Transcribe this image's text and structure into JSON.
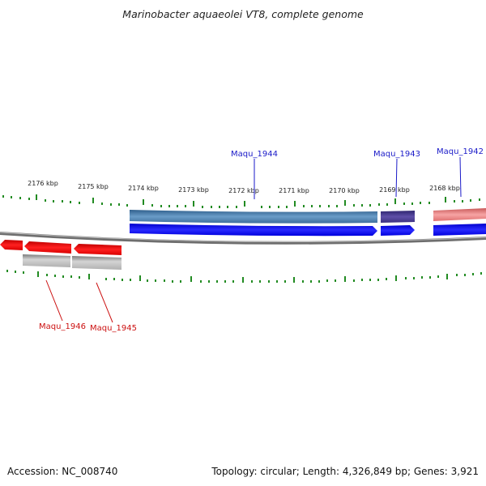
{
  "title": "Marinobacter aquaeolei VT8, complete genome",
  "footer": {
    "accession": "Accession: NC_008740",
    "summary": "Topology: circular; Length: 4,326,849 bp; Genes: 3,921"
  },
  "ticks": [
    "2176 kbp",
    "2175 kbp",
    "2174 kbp",
    "2173 kbp",
    "2172 kbp",
    "2171 kbp",
    "2170 kbp",
    "2169 kbp",
    "2168 kbp"
  ],
  "genes_forward": [
    "Maqu_1944",
    "Maqu_1943",
    "Maqu_1942"
  ],
  "genes_reverse": [
    "Maqu_1946",
    "Maqu_1945"
  ],
  "colors": {
    "forward_cds": "#0000ff",
    "reverse_cds": "#ee0000",
    "gene_1944": "#4a7fb0",
    "gene_1943": "#4a3a8c",
    "gene_1942": "#e88080",
    "reverse_gene": "#a8a8a8",
    "backbone": "#808080",
    "ticks": "#228b22"
  }
}
